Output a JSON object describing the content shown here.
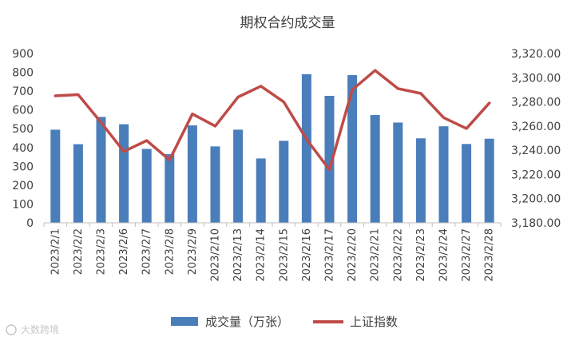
{
  "chart_data": {
    "type": "bar",
    "title": "期权合约成交量",
    "categories": [
      "2023/2/1",
      "2023/2/2",
      "2023/2/3",
      "2023/2/6",
      "2023/2/7",
      "2023/2/8",
      "2023/2/9",
      "2023/2/10",
      "2023/2/13",
      "2023/2/14",
      "2023/2/15",
      "2023/2/16",
      "2023/2/17",
      "2023/2/20",
      "2023/2/21",
      "2023/2/22",
      "2023/2/23",
      "2023/2/24",
      "2023/2/27",
      "2023/2/28"
    ],
    "series": [
      {
        "name": "成交量（万张）",
        "type": "bar",
        "axis": "left",
        "color": "#4a7ebb",
        "values": [
          495,
          418,
          563,
          524,
          393,
          365,
          518,
          406,
          495,
          342,
          436,
          790,
          675,
          785,
          573,
          533,
          449,
          513,
          419,
          447
        ]
      },
      {
        "name": "上证指数",
        "type": "line",
        "axis": "right",
        "color": "#be4b48",
        "values": [
          3285,
          3286,
          3263,
          3239,
          3248,
          3232,
          3270,
          3260,
          3284,
          3293,
          3280,
          3249,
          3224,
          3290,
          3306,
          3291,
          3287,
          3267,
          3258,
          3279
        ]
      }
    ],
    "y_left": {
      "min": 0,
      "max": 900,
      "ticks": [
        "0",
        "100",
        "200",
        "300",
        "400",
        "500",
        "600",
        "700",
        "800",
        "900"
      ]
    },
    "y_right": {
      "min": 3180,
      "max": 3320,
      "ticks": [
        "3,180.00",
        "3,200.00",
        "3,220.00",
        "3,240.00",
        "3,260.00",
        "3,280.00",
        "3,300.00",
        "3,320.00"
      ]
    },
    "grid": false,
    "legend": "bottom"
  },
  "watermark": "大数跨境"
}
